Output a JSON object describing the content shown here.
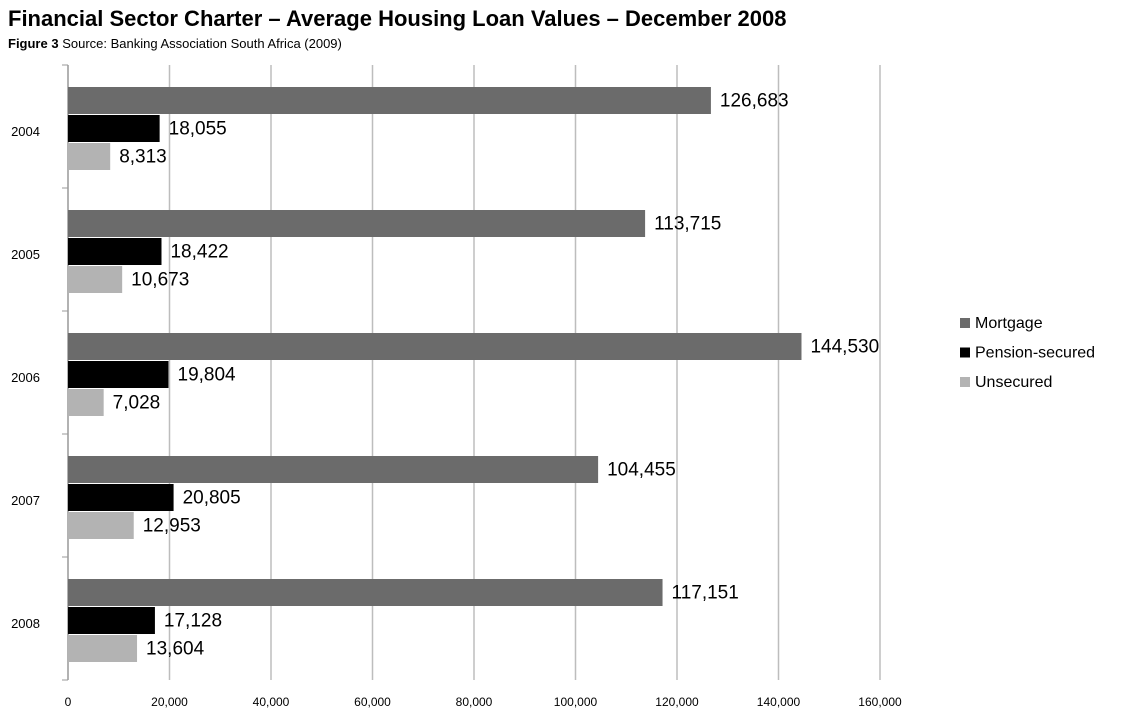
{
  "chart_data": {
    "type": "hbar",
    "title": "Financial Sector Charter – Average Housing Loan Values – December 2008",
    "subtitle_label": "Figure 3",
    "subtitle": "Source: Banking Association South Africa (2009)",
    "categories": [
      "2004",
      "2005",
      "2006",
      "2007",
      "2008"
    ],
    "series": [
      {
        "name": "Mortgage",
        "color": "#6b6b6b",
        "values": [
          126683,
          113715,
          144530,
          104455,
          117151
        ],
        "value_labels": [
          "126,683",
          "113,715",
          "144,530",
          "104,455",
          "117,151"
        ]
      },
      {
        "name": "Pension-secured",
        "color": "#000000",
        "values": [
          18055,
          18422,
          19804,
          20805,
          17128
        ],
        "value_labels": [
          "18,055",
          "18,422",
          "19,804",
          "20,805",
          "17,128"
        ]
      },
      {
        "name": "Unsecured",
        "color": "#b3b3b3",
        "values": [
          8313,
          10673,
          7028,
          12953,
          13604
        ],
        "value_labels": [
          "8,313",
          "10,673",
          "7,028",
          "12,953",
          "13,604"
        ]
      }
    ],
    "xlim": [
      0,
      160000
    ],
    "xticks": [
      0,
      {
        "value": 20000,
        "label": "20,000"
      },
      {
        "value": 40000,
        "label": "40,000"
      },
      {
        "value": 60000,
        "label": "60,000"
      },
      {
        "value": 80000,
        "label": "80,000"
      },
      {
        "value": 100000,
        "label": "100,000"
      },
      {
        "value": 120000,
        "label": "120,000"
      },
      {
        "value": 140000,
        "label": "140,000"
      },
      {
        "value": 160000,
        "label": "160,000"
      }
    ],
    "grid": true,
    "legend": "right"
  }
}
